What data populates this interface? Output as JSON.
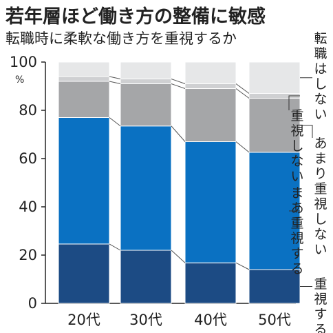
{
  "title": "若年層ほど働き方の整備に敏感",
  "subtitle": "転職時に柔軟な働き方を重視するか",
  "chart_data": {
    "type": "bar",
    "stacked": true,
    "title": "若年層ほど働き方の整備に敏感",
    "subtitle": "転職時に柔軟な働き方を重視するか",
    "unit": "%",
    "ylim": [
      0,
      100
    ],
    "yticks": [
      "0",
      "20",
      "40",
      "60",
      "80",
      "100"
    ],
    "categories": [
      "20代",
      "30代",
      "40代",
      "50代"
    ],
    "series": [
      {
        "name": "重視する",
        "color": "#1c4b84",
        "values": [
          24.6,
          22.0,
          16.8,
          14.0
        ]
      },
      {
        "name": "まあ重視する",
        "color": "#0a71c2",
        "values": [
          52.4,
          51.5,
          50.2,
          48.6
        ]
      },
      {
        "name": "あまり重視しない",
        "color": "#a5a6a8",
        "values": [
          15.0,
          17.5,
          22.0,
          22.4
        ]
      },
      {
        "name": "重視しない",
        "color": "#cfd0d2",
        "values": [
          2.0,
          2.0,
          2.0,
          2.0
        ]
      },
      {
        "name": "転職はしない",
        "color": "#e6e7e8",
        "values": [
          6.0,
          7.0,
          9.0,
          13.0
        ]
      }
    ],
    "grid": false,
    "legend": "right, vertical labels with leader lines"
  }
}
